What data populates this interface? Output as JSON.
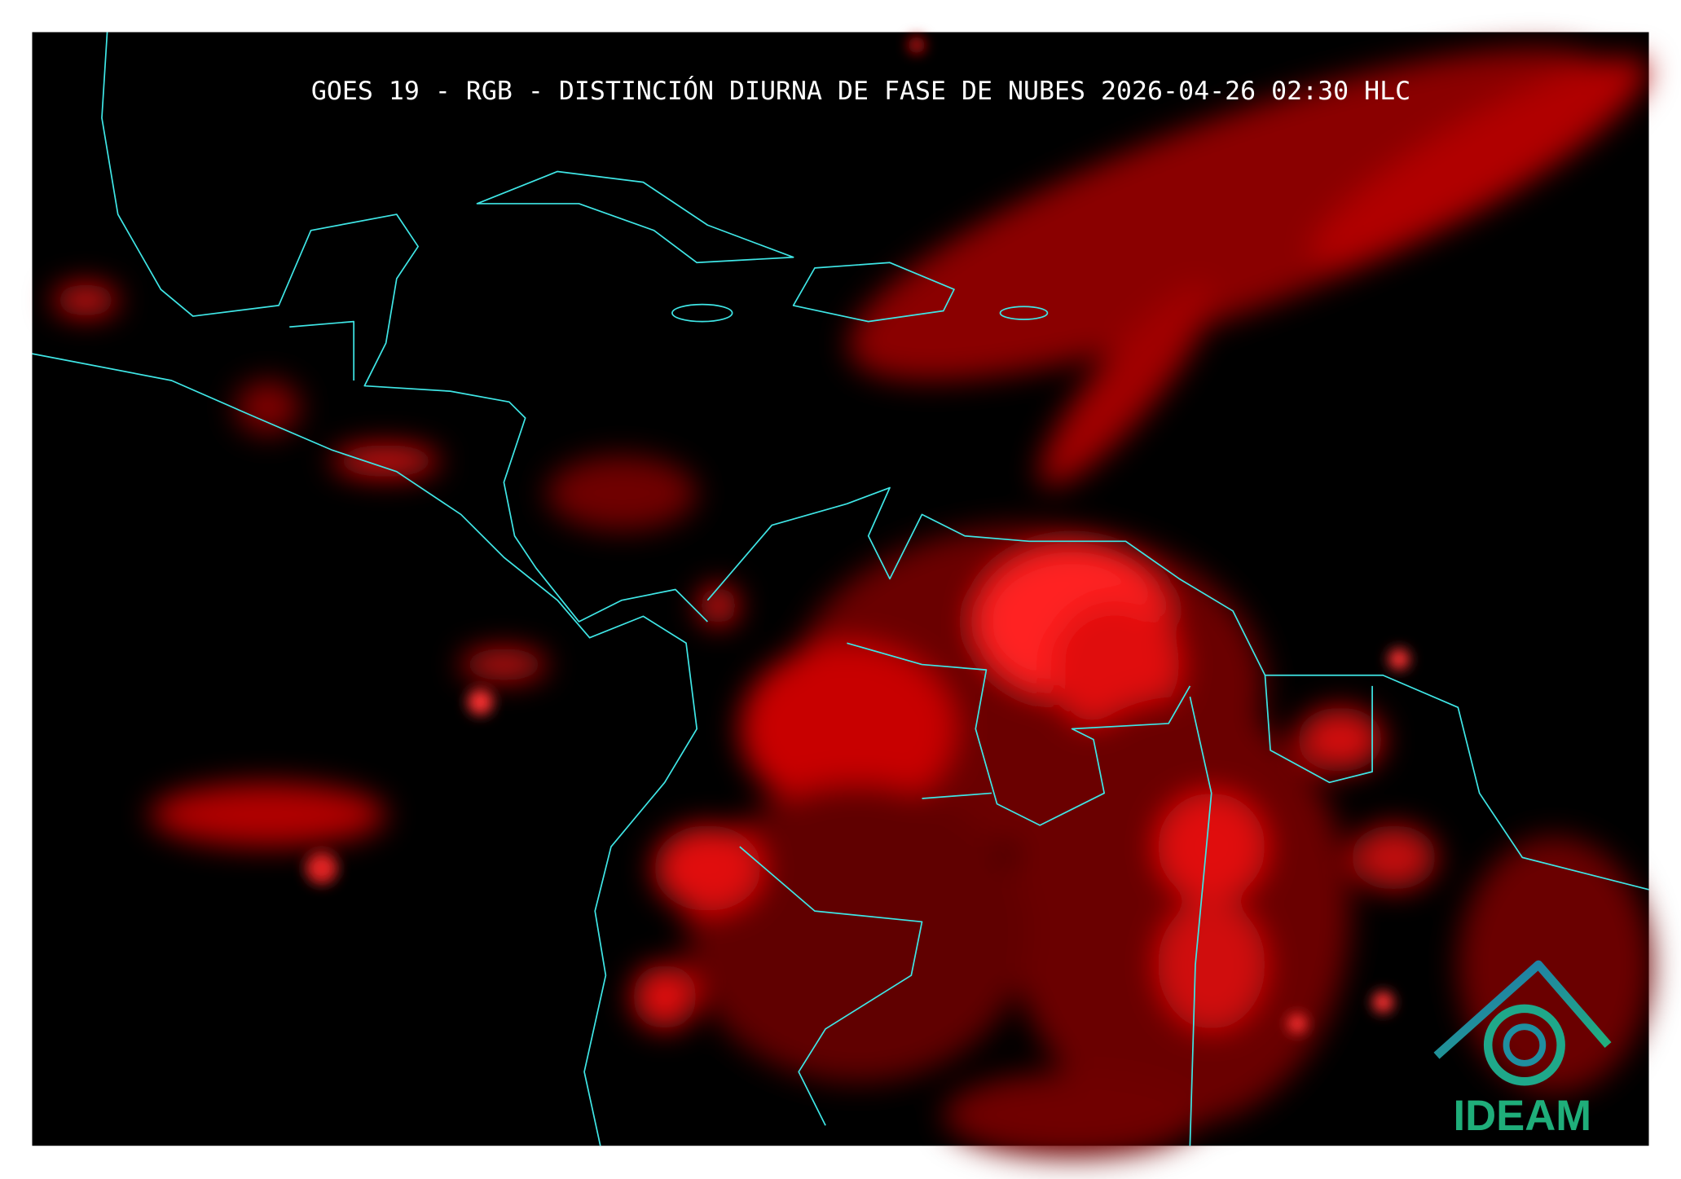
{
  "header": {
    "title": "GOES 19 - RGB - DISTINCIÓN DIURNA DE FASE DE NUBES 2026-04-26 02:30 HLC"
  },
  "logo": {
    "text": "IDEAM"
  }
}
